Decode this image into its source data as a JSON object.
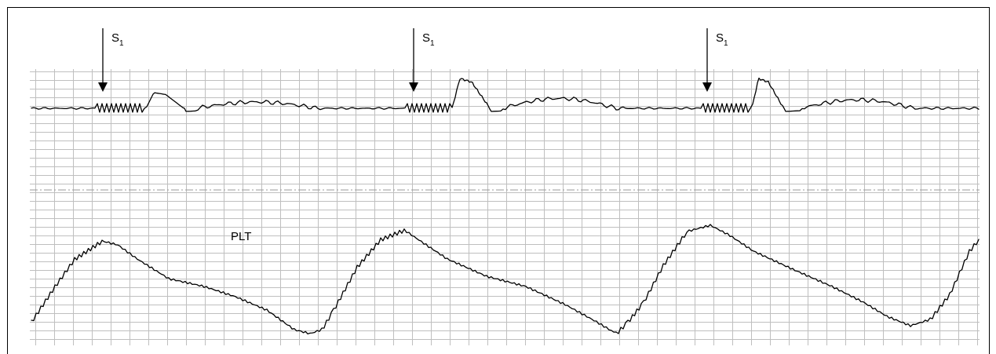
{
  "marker": {
    "symbol": "S",
    "subscript": "1"
  },
  "markers": [
    {
      "label": "S",
      "sub": "1"
    },
    {
      "label": "S",
      "sub": "1"
    },
    {
      "label": "S",
      "sub": "1"
    }
  ],
  "trace_label": "PLT",
  "colors": {
    "trace": "#000000",
    "grid": "#bfbfbf",
    "divider": "#9a9a9a",
    "border": "#000000"
  }
}
